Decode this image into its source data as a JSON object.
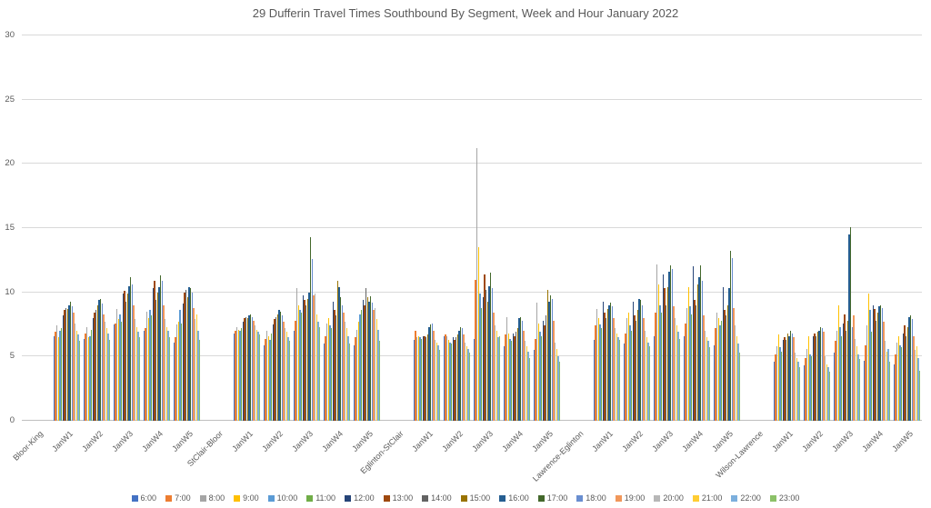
{
  "title": "29 Dufferin Travel Times Southbound By Segment, Week and Hour January 2022",
  "chart_data": {
    "type": "bar",
    "title": "29 Dufferin Travel Times Southbound By Segment, Week and Hour January 2022",
    "xlabel": "",
    "ylabel": "",
    "ylim": [
      0,
      30
    ],
    "yticks": [
      0,
      5,
      10,
      15,
      20,
      25,
      30
    ],
    "grid": true,
    "legend_position": "bottom",
    "axis_color": "#595959",
    "gridline_color": "#d9d9d9",
    "hours": [
      "6:00",
      "7:00",
      "8:00",
      "9:00",
      "10:00",
      "11:00",
      "12:00",
      "13:00",
      "14:00",
      "15:00",
      "16:00",
      "17:00",
      "18:00",
      "19:00",
      "20:00",
      "21:00",
      "22:00",
      "23:00"
    ],
    "hour_colors": [
      "#4472C4",
      "#ED7D31",
      "#A5A5A5",
      "#FFC000",
      "#5B9BD5",
      "#70AD47",
      "#264478",
      "#9E480E",
      "#636363",
      "#997300",
      "#255E91",
      "#43682B",
      "#698ED0",
      "#F1975A",
      "#B7B7B7",
      "#FFCD33",
      "#7CAFDD",
      "#8CC168"
    ],
    "segments": [
      {
        "name": "Bloor-King",
        "weeks": [
          {
            "label": "JanW1",
            "values": [
              6.6,
              6.9,
              7.4,
              6.5,
              7.0,
              7.2,
              8.2,
              8.6,
              8.8,
              8.7,
              9.0,
              9.3,
              8.9,
              8.4,
              7.6,
              7.0,
              6.7,
              6.2
            ]
          },
          {
            "label": "JanW2",
            "values": [
              6.4,
              6.8,
              7.3,
              6.5,
              6.6,
              7.1,
              8.0,
              8.4,
              8.6,
              9.0,
              9.4,
              9.5,
              9.1,
              8.3,
              7.7,
              7.2,
              6.8,
              6.3
            ]
          },
          {
            "label": "JanW3",
            "values": [
              7.5,
              7.6,
              8.7,
              7.9,
              8.3,
              7.7,
              9.9,
              10.1,
              9.3,
              9.9,
              10.5,
              11.2,
              10.6,
              9.0,
              7.9,
              7.3,
              6.9,
              6.5
            ]
          },
          {
            "label": "JanW4",
            "values": [
              7.0,
              7.2,
              8.5,
              8.0,
              8.6,
              8.2,
              10.3,
              10.9,
              9.4,
              10.0,
              10.4,
              11.3,
              10.9,
              9.0,
              7.9,
              7.3,
              7.0,
              6.5
            ]
          },
          {
            "label": "JanW5",
            "values": [
              6.1,
              6.5,
              7.5,
              7.7,
              8.6,
              7.6,
              9.1,
              10.0,
              10.2,
              9.6,
              10.4,
              10.3,
              10.0,
              8.8,
              7.9,
              8.3,
              7.0,
              6.3
            ]
          }
        ]
      },
      {
        "name": "StClair-Bloor",
        "weeks": [
          {
            "label": "JanW1",
            "values": [
              6.8,
              7.0,
              7.3,
              7.1,
              7.0,
              7.2,
              7.7,
              8.0,
              8.1,
              8.0,
              8.2,
              8.3,
              8.1,
              7.8,
              7.4,
              7.1,
              6.9,
              6.7
            ]
          },
          {
            "label": "JanW2",
            "values": [
              5.9,
              6.4,
              7.0,
              6.6,
              6.3,
              6.8,
              7.5,
              7.9,
              8.1,
              8.3,
              8.6,
              8.5,
              8.2,
              7.7,
              7.2,
              6.9,
              6.5,
              6.2
            ]
          },
          {
            "label": "JanW3",
            "values": [
              7.0,
              7.8,
              10.3,
              9.0,
              8.6,
              8.4,
              9.8,
              9.4,
              9.0,
              9.5,
              10.0,
              14.3,
              12.6,
              9.8,
              9.9,
              8.3,
              7.7,
              7.3
            ]
          },
          {
            "label": "JanW4",
            "values": [
              6.0,
              6.6,
              7.6,
              8.0,
              7.4,
              7.2,
              9.3,
              8.6,
              8.2,
              10.9,
              10.4,
              9.6,
              9.0,
              8.4,
              7.7,
              7.2,
              6.6,
              6.0
            ]
          },
          {
            "label": "JanW5",
            "values": [
              5.9,
              6.5,
              7.1,
              7.7,
              8.3,
              8.6,
              9.4,
              9.0,
              10.3,
              9.6,
              9.3,
              9.7,
              9.2,
              8.6,
              8.8,
              7.9,
              7.1,
              6.2
            ]
          }
        ]
      },
      {
        "name": "Eglinton-StClair",
        "weeks": [
          {
            "label": "JanW1",
            "values": [
              6.3,
              7.0,
              6.5,
              6.6,
              6.5,
              6.4,
              6.6,
              6.6,
              6.5,
              6.7,
              7.3,
              7.5,
              7.6,
              7.0,
              6.3,
              6.1,
              5.9,
              5.5
            ]
          },
          {
            "label": "JanW2",
            "values": [
              6.6,
              6.7,
              6.6,
              6.3,
              6.1,
              6.0,
              6.5,
              6.3,
              6.5,
              6.7,
              7.0,
              7.3,
              7.2,
              6.7,
              6.1,
              5.8,
              5.6,
              5.3
            ]
          },
          {
            "label": "JanW3",
            "values": [
              6.4,
              11.0,
              21.2,
              13.5,
              9.9,
              8.8,
              9.6,
              11.4,
              10.2,
              9.3,
              10.5,
              11.5,
              10.3,
              8.4,
              7.4,
              7.0,
              6.5,
              6.6
            ]
          },
          {
            "label": "JanW4",
            "values": [
              5.8,
              6.7,
              8.1,
              6.8,
              6.4,
              6.2,
              6.8,
              6.6,
              6.9,
              7.2,
              8.0,
              8.1,
              7.8,
              7.0,
              6.2,
              5.8,
              5.4,
              4.9
            ]
          },
          {
            "label": "JanW5",
            "values": [
              5.5,
              6.4,
              9.2,
              7.6,
              6.9,
              6.6,
              7.8,
              7.4,
              8.2,
              10.2,
              9.3,
              9.8,
              9.5,
              7.8,
              6.1,
              5.6,
              5.0,
              4.6
            ]
          }
        ]
      },
      {
        "name": "Lawrence-Eglinton",
        "weeks": [
          {
            "label": "JanW1",
            "values": [
              6.3,
              7.4,
              8.7,
              8.0,
              7.5,
              7.2,
              9.3,
              8.4,
              8.0,
              8.7,
              9.0,
              9.2,
              8.9,
              8.0,
              7.2,
              6.8,
              6.5,
              6.3
            ]
          },
          {
            "label": "JanW2",
            "values": [
              6.0,
              6.8,
              8.0,
              8.4,
              7.4,
              7.0,
              9.3,
              8.2,
              7.8,
              8.6,
              9.5,
              9.4,
              9.0,
              8.0,
              7.0,
              6.5,
              6.1,
              5.8
            ]
          },
          {
            "label": "JanW3",
            "values": [
              6.6,
              8.4,
              12.2,
              10.6,
              9.0,
              8.4,
              11.4,
              10.3,
              9.0,
              10.4,
              11.6,
              12.1,
              11.8,
              8.9,
              8.0,
              7.4,
              6.9,
              6.4
            ]
          },
          {
            "label": "JanW4",
            "values": [
              6.6,
              7.6,
              8.8,
              10.4,
              8.9,
              8.3,
              12.0,
              9.4,
              9.0,
              10.6,
              11.2,
              12.1,
              10.9,
              8.2,
              7.0,
              6.5,
              6.2,
              5.7
            ]
          },
          {
            "label": "JanW5",
            "values": [
              5.9,
              7.2,
              8.4,
              8.0,
              7.4,
              7.8,
              10.4,
              8.6,
              8.2,
              9.0,
              10.3,
              13.2,
              12.7,
              8.8,
              7.4,
              6.6,
              6.0,
              5.3
            ]
          }
        ]
      },
      {
        "name": "Wilson-Lawrence",
        "weeks": [
          {
            "label": "JanW1",
            "values": [
              4.6,
              5.2,
              5.8,
              6.7,
              5.7,
              5.4,
              6.3,
              6.5,
              6.3,
              6.8,
              6.6,
              7.0,
              6.8,
              6.5,
              5.3,
              4.9,
              4.6,
              4.2
            ]
          },
          {
            "label": "JanW2",
            "values": [
              4.3,
              4.9,
              5.6,
              6.6,
              5.2,
              5.0,
              6.6,
              6.8,
              6.6,
              6.9,
              7.0,
              7.3,
              7.2,
              6.9,
              5.0,
              4.4,
              4.2,
              3.8
            ]
          },
          {
            "label": "JanW3",
            "values": [
              5.3,
              6.2,
              7.0,
              9.0,
              7.3,
              6.6,
              7.6,
              8.3,
              7.0,
              7.8,
              14.5,
              15.1,
              7.3,
              8.2,
              6.4,
              5.8,
              5.2,
              4.8
            ]
          },
          {
            "label": "JanW4",
            "values": [
              4.7,
              5.9,
              7.4,
              9.9,
              8.6,
              6.9,
              9.0,
              8.7,
              7.8,
              8.4,
              8.9,
              9.0,
              8.8,
              7.7,
              6.2,
              5.4,
              5.6,
              4.6
            ]
          },
          {
            "label": "JanW5",
            "values": [
              4.4,
              5.2,
              6.1,
              6.6,
              5.9,
              5.7,
              6.8,
              7.4,
              6.6,
              7.3,
              8.1,
              8.2,
              7.9,
              6.6,
              5.5,
              5.8,
              4.9,
              3.9
            ]
          }
        ]
      }
    ]
  }
}
